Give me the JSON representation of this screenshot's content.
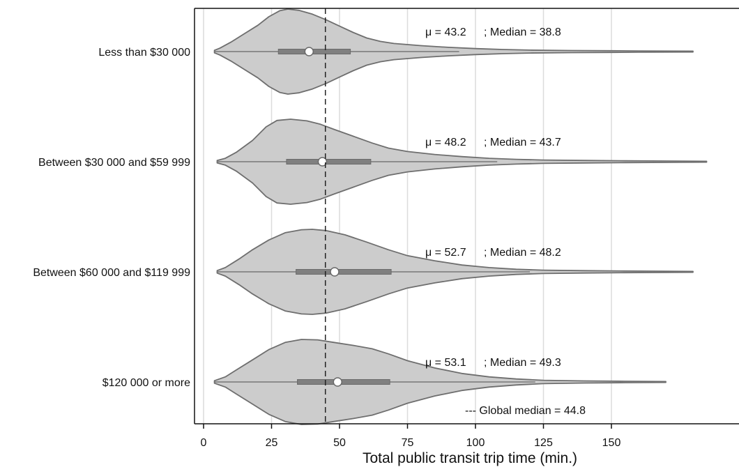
{
  "chart_data": {
    "type": "violin",
    "orientation": "horizontal",
    "xlabel": "Total public transit trip time (min.)",
    "x_ticks": [
      0,
      25,
      50,
      75,
      100,
      125,
      150
    ],
    "xlim": [
      -3,
      197
    ],
    "grid": "vertical",
    "reference_line": {
      "value": 44.8,
      "label": "--- Global median = 44.8",
      "style": "dashed"
    },
    "groups": [
      {
        "label": "Less than $30 000",
        "mean_label": "μ  = 43.2",
        "median_label": "; Median = 38.8",
        "mean": 43.2,
        "median": 38.8,
        "q1": 27.5,
        "q3": 54,
        "whisker_high": 94,
        "density": [
          [
            4,
            0.03
          ],
          [
            6,
            0.08
          ],
          [
            10,
            0.22
          ],
          [
            15,
            0.42
          ],
          [
            20,
            0.62
          ],
          [
            24,
            0.82
          ],
          [
            28,
            0.96
          ],
          [
            31,
            1.0
          ],
          [
            35,
            0.97
          ],
          [
            40,
            0.88
          ],
          [
            45,
            0.75
          ],
          [
            50,
            0.6
          ],
          [
            55,
            0.45
          ],
          [
            60,
            0.32
          ],
          [
            65,
            0.24
          ],
          [
            70,
            0.19
          ],
          [
            80,
            0.14
          ],
          [
            90,
            0.1
          ],
          [
            100,
            0.07
          ],
          [
            110,
            0.05
          ],
          [
            120,
            0.035
          ],
          [
            135,
            0.025
          ],
          [
            150,
            0.02
          ],
          [
            160,
            0.015
          ],
          [
            170,
            0.012
          ],
          [
            180,
            0.01
          ]
        ]
      },
      {
        "label": "Between $30 000 and $59 999",
        "mean_label": "μ  =  48.2",
        "median_label": "; Median = 43.7",
        "mean": 48.2,
        "median": 43.7,
        "q1": 30.5,
        "q3": 61.5,
        "whisker_high": 108,
        "density": [
          [
            5,
            0.03
          ],
          [
            8,
            0.08
          ],
          [
            12,
            0.22
          ],
          [
            18,
            0.5
          ],
          [
            23,
            0.82
          ],
          [
            27,
            0.97
          ],
          [
            32,
            1.0
          ],
          [
            38,
            0.96
          ],
          [
            43,
            0.88
          ],
          [
            48,
            0.76
          ],
          [
            55,
            0.6
          ],
          [
            62,
            0.44
          ],
          [
            68,
            0.32
          ],
          [
            75,
            0.24
          ],
          [
            85,
            0.17
          ],
          [
            95,
            0.12
          ],
          [
            105,
            0.08
          ],
          [
            115,
            0.055
          ],
          [
            125,
            0.04
          ],
          [
            140,
            0.03
          ],
          [
            155,
            0.022
          ],
          [
            170,
            0.016
          ],
          [
            185,
            0.01
          ]
        ]
      },
      {
        "label": "Between $60 000 and $119 999",
        "mean_label": "μ  = 52.7",
        "median_label": "; Median = 48.2",
        "mean": 52.7,
        "median": 48.2,
        "q1": 34,
        "q3": 69,
        "whisker_high": 120,
        "density": [
          [
            5,
            0.03
          ],
          [
            8,
            0.1
          ],
          [
            13,
            0.3
          ],
          [
            18,
            0.52
          ],
          [
            24,
            0.75
          ],
          [
            30,
            0.92
          ],
          [
            36,
            0.99
          ],
          [
            40,
            1.0
          ],
          [
            45,
            0.97
          ],
          [
            52,
            0.87
          ],
          [
            60,
            0.7
          ],
          [
            68,
            0.52
          ],
          [
            75,
            0.38
          ],
          [
            85,
            0.26
          ],
          [
            95,
            0.16
          ],
          [
            105,
            0.1
          ],
          [
            115,
            0.06
          ],
          [
            125,
            0.04
          ],
          [
            140,
            0.028
          ],
          [
            155,
            0.02
          ],
          [
            170,
            0.014
          ],
          [
            180,
            0.01
          ]
        ]
      },
      {
        "label": "$120 000 or more",
        "mean_label": "μ  = 53.1",
        "median_label": "; Median = 49.3",
        "mean": 53.1,
        "median": 49.3,
        "q1": 34.5,
        "q3": 68.5,
        "whisker_high": 122,
        "density": [
          [
            4,
            0.03
          ],
          [
            8,
            0.12
          ],
          [
            12,
            0.28
          ],
          [
            18,
            0.52
          ],
          [
            24,
            0.76
          ],
          [
            30,
            0.93
          ],
          [
            36,
            1.0
          ],
          [
            42,
            0.99
          ],
          [
            48,
            0.93
          ],
          [
            55,
            0.86
          ],
          [
            62,
            0.78
          ],
          [
            68,
            0.66
          ],
          [
            75,
            0.5
          ],
          [
            85,
            0.33
          ],
          [
            95,
            0.2
          ],
          [
            105,
            0.12
          ],
          [
            115,
            0.07
          ],
          [
            125,
            0.04
          ],
          [
            140,
            0.025
          ],
          [
            155,
            0.017
          ],
          [
            170,
            0.01
          ]
        ]
      }
    ]
  }
}
